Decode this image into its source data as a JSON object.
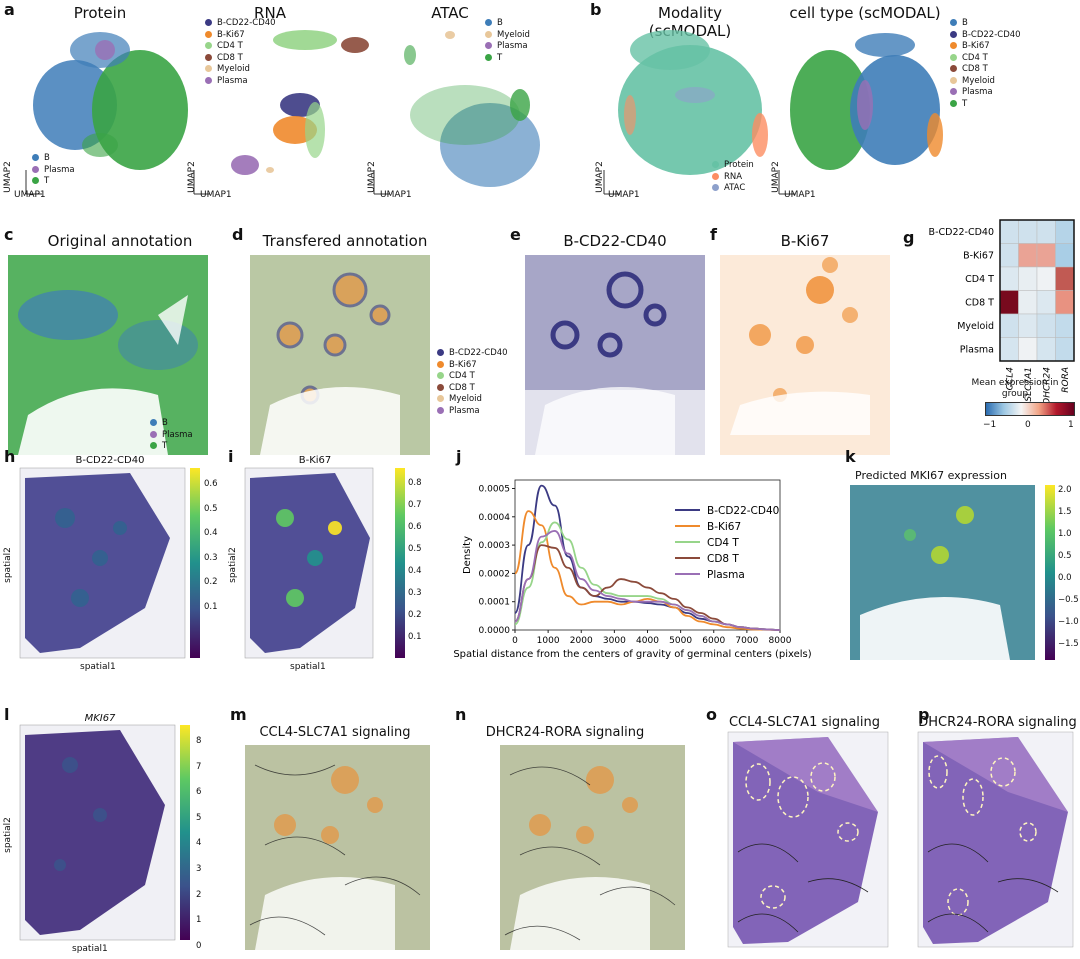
{
  "panel_letters": {
    "a": "a",
    "b": "b",
    "c": "c",
    "d": "d",
    "e": "e",
    "f": "f",
    "g": "g",
    "h": "h",
    "i": "i",
    "j": "j",
    "k": "k",
    "l": "l",
    "m": "m",
    "n": "n",
    "o": "o",
    "p": "p"
  },
  "titles": {
    "protein": "Protein",
    "rna": "RNA",
    "atac": "ATAC",
    "modality": "Modality (scMODAL)",
    "celltype": "cell type (scMODAL)",
    "orig": "Original annotation",
    "transfer": "Transfered annotation",
    "e": "B-CD22-CD40",
    "f": "B-Ki67",
    "h": "B-CD22-CD40",
    "i": "B-Ki67",
    "k": "Predicted MKI67 expression",
    "l": "MKI67",
    "m": "CCL4-SLC7A1 signaling",
    "n": "DHCR24-RORA signaling",
    "o": "CCL4-SLC7A1 signaling",
    "p": "DHCR24-RORA signaling"
  },
  "axes": {
    "umap1": "UMAP1",
    "umap2": "UMAP2",
    "spatial1": "spatial1",
    "spatial2": "spatial2"
  },
  "colors": {
    "B": "#3e7db8",
    "B-CD22-CD40": "#3b3a83",
    "B-Ki67": "#ef8a2c",
    "CD4 T": "#97d58a",
    "CD8 T": "#8b4a3a",
    "Myeloid": "#e8c79a",
    "Plasma": "#9a6fb5",
    "T": "#3aa445",
    "Protein": "#66c2a5",
    "RNA": "#fc8d62",
    "ATAC": "#8da0cb"
  },
  "legends": {
    "protein": [
      "B",
      "Plasma",
      "T"
    ],
    "rna": [
      "B-CD22-CD40",
      "B-Ki67",
      "CD4 T",
      "CD8 T",
      "Myeloid",
      "Plasma"
    ],
    "atac": [
      "B",
      "Myeloid",
      "Plasma",
      "T"
    ],
    "modality": [
      "Protein",
      "RNA",
      "ATAC"
    ],
    "celltype": [
      "B",
      "B-CD22-CD40",
      "B-Ki67",
      "CD4 T",
      "CD8 T",
      "Myeloid",
      "Plasma",
      "T"
    ],
    "orig": [
      "B",
      "Plasma",
      "T"
    ],
    "transfer": [
      "B-CD22-CD40",
      "B-Ki67",
      "CD4 T",
      "CD8 T",
      "Myeloid",
      "Plasma"
    ]
  },
  "heatmap": {
    "rows": [
      "B-CD22-CD40",
      "B-Ki67",
      "CD4 T",
      "CD8 T",
      "Myeloid",
      "Plasma"
    ],
    "cols": [
      "CCL4",
      "SLC7A1",
      "DHCR24",
      "RORA"
    ],
    "values": [
      [
        -0.3,
        -0.3,
        -0.3,
        -0.5
      ],
      [
        -0.3,
        0.5,
        0.5,
        -0.6
      ],
      [
        -0.2,
        -0.1,
        -0.05,
        0.8
      ],
      [
        1.0,
        -0.1,
        -0.2,
        0.6
      ],
      [
        -0.3,
        -0.2,
        -0.3,
        -0.4
      ],
      [
        -0.25,
        -0.05,
        -0.25,
        -0.4
      ]
    ],
    "cbar_title": "Mean expression in group",
    "cbar_ticks": [
      "−1",
      "0",
      "1"
    ]
  },
  "colorbars": {
    "h": [
      "0.6",
      "0.5",
      "0.4",
      "0.3",
      "0.2",
      "0.1"
    ],
    "i": [
      "0.8",
      "0.7",
      "0.6",
      "0.5",
      "0.4",
      "0.3",
      "0.2",
      "0.1"
    ],
    "k": [
      "2.0",
      "1.5",
      "1.0",
      "0.5",
      "0.0",
      "−0.5",
      "−1.0",
      "−1.5"
    ],
    "l": [
      "8",
      "7",
      "6",
      "5",
      "4",
      "3",
      "2",
      "1",
      "0"
    ]
  },
  "chart_data": {
    "type": "line",
    "title": "",
    "xlabel": "Spatial distance from the centers of gravity of germinal centers (pixels)",
    "ylabel": "Density",
    "xlim": [
      0,
      8000
    ],
    "ylim": [
      0,
      0.00053
    ],
    "xticks": [
      "0",
      "1000",
      "2000",
      "3000",
      "4000",
      "5000",
      "6000",
      "7000",
      "8000"
    ],
    "yticks": [
      "0.0000",
      "0.0001",
      "0.0002",
      "0.0003",
      "0.0004",
      "0.0005"
    ],
    "legend_position": "upper-right",
    "x": [
      0,
      400,
      800,
      1200,
      1600,
      2000,
      2400,
      2800,
      3200,
      3600,
      4000,
      4400,
      4800,
      5200,
      5600,
      6000,
      6400,
      6800,
      7200,
      7600,
      8000
    ],
    "series": [
      {
        "name": "B-CD22-CD40",
        "color": "#3b3a83",
        "values": [
          6e-05,
          0.0003,
          0.00051,
          0.00044,
          0.00026,
          0.00015,
          0.00012,
          0.00011,
          0.0001,
          0.0001,
          9.5e-05,
          9e-05,
          8e-05,
          6e-05,
          4e-05,
          3e-05,
          2e-05,
          1e-05,
          5e-06,
          2e-06,
          0
        ]
      },
      {
        "name": "B-Ki67",
        "color": "#ef8a2c",
        "values": [
          0.0002,
          0.00042,
          0.00037,
          0.00022,
          0.00012,
          9e-05,
          0.0001,
          0.0001,
          9e-05,
          0.0001,
          0.00011,
          0.0001,
          8e-05,
          5e-05,
          3e-05,
          2e-05,
          1e-05,
          5e-06,
          2e-06,
          1e-06,
          0
        ]
      },
      {
        "name": "CD4 T",
        "color": "#97d58a",
        "values": [
          2e-05,
          0.00015,
          0.00031,
          0.00038,
          0.00032,
          0.00022,
          0.00016,
          0.00013,
          0.00012,
          0.00012,
          0.00012,
          0.00011,
          9e-05,
          7e-05,
          5e-05,
          3e-05,
          2e-05,
          1e-05,
          5e-06,
          2e-06,
          0
        ]
      },
      {
        "name": "CD8 T",
        "color": "#8b4a3a",
        "values": [
          3e-05,
          0.00018,
          0.0003,
          0.00029,
          0.00022,
          0.00015,
          0.00012,
          0.00015,
          0.00018,
          0.00017,
          0.00015,
          0.00013,
          0.00011,
          8e-05,
          6e-05,
          4e-05,
          2e-05,
          1e-05,
          5e-06,
          2e-06,
          0
        ]
      },
      {
        "name": "Plasma",
        "color": "#9a6fb5",
        "values": [
          3e-05,
          0.00018,
          0.00033,
          0.00035,
          0.00027,
          0.00018,
          0.00014,
          0.00012,
          0.00011,
          0.0001,
          0.0001,
          0.0001,
          9e-05,
          7e-05,
          5e-05,
          3e-05,
          2e-05,
          1e-05,
          5e-06,
          2e-06,
          0
        ]
      }
    ]
  }
}
